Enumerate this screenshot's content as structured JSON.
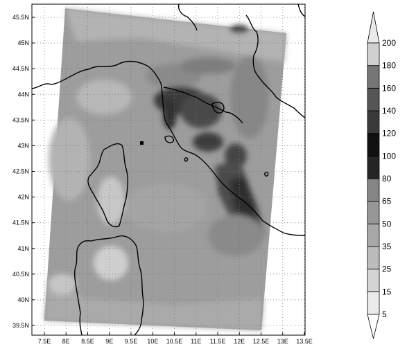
{
  "map": {
    "lat_labels": [
      "45.5N",
      "45N",
      "44.5N",
      "44N",
      "43.5N",
      "43N",
      "42.5N",
      "42N",
      "41.5N",
      "41N",
      "40.5N",
      "40N",
      "39.5N"
    ],
    "lon_labels": [
      "7.5E",
      "8E",
      "8.5E",
      "9E",
      "9.5E",
      "10E",
      "10.5E",
      "11E",
      "11.5E",
      "12E",
      "12.5E",
      "13E",
      "13.5E"
    ],
    "lon_range": [
      7.5,
      13.5
    ],
    "lat_range": [
      39.3,
      45.7
    ],
    "grid": "dotted"
  },
  "colorbar": {
    "levels": [
      "5",
      "15",
      "25",
      "35",
      "50",
      "65",
      "80",
      "100",
      "120",
      "140",
      "160",
      "180",
      "200"
    ],
    "colors": [
      "#ffffff",
      "#eaeaea",
      "#d4d4d4",
      "#bcbcbc",
      "#a8a8a8",
      "#979797",
      "#858585",
      "#252525",
      "#101010",
      "#3a3a3a",
      "#555555",
      "#767676",
      "#d0d0d0",
      "#eaeaea"
    ],
    "extend": "both"
  }
}
